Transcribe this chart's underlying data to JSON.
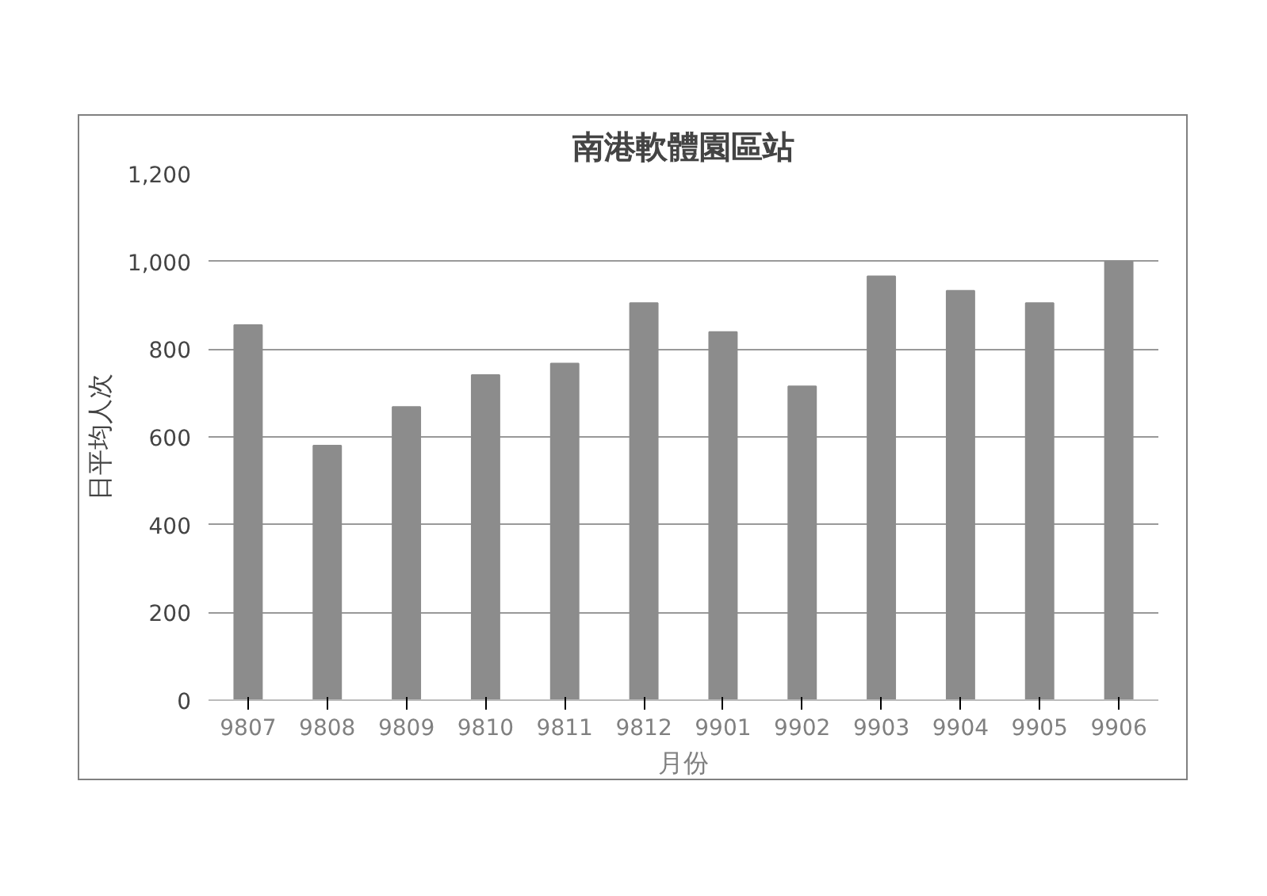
{
  "chart_data": {
    "type": "bar",
    "title": "南港軟體園區站",
    "xlabel": "月份",
    "ylabel": "日平均人次",
    "categories": [
      "9807",
      "9808",
      "9809",
      "9810",
      "9811",
      "9812",
      "9901",
      "9902",
      "9903",
      "9904",
      "9905",
      "9906"
    ],
    "values": [
      855,
      580,
      668,
      741,
      767,
      905,
      839,
      715,
      966,
      933,
      905,
      1000
    ],
    "color": "#8c8c8c",
    "ylim": [
      0,
      1200
    ],
    "yticks": [
      0,
      {
        "value": 200,
        "label": "200"
      },
      {
        "value": 400,
        "label": "400"
      },
      {
        "value": 600,
        "label": "600"
      },
      {
        "value": 800,
        "label": "800"
      },
      {
        "value": 1000,
        "label": "1,000"
      },
      {
        "value": 1200,
        "label": "1,200"
      }
    ],
    "grid": "y"
  }
}
